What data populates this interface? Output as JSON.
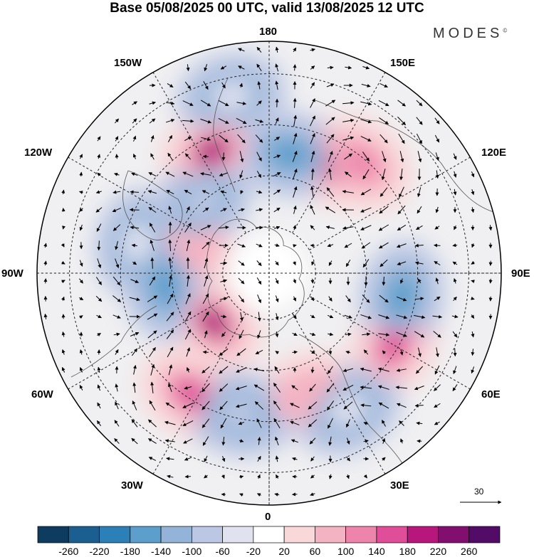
{
  "header": {
    "title": "Base 05/08/2025 00 UTC, valid 13/08/2025 12 UTC",
    "brand": "MODES",
    "brand_mark": "©"
  },
  "map": {
    "projection": "north polar stereographic",
    "longitude_labels": {
      "top": "180",
      "bottom": "0",
      "left": "90W",
      "right": "90E",
      "upper_left": "150W",
      "upper_right": "150E",
      "mid_upper_left": "120W",
      "mid_upper_right": "120E",
      "mid_lower_left": "60W",
      "mid_lower_right": "60E",
      "lower_left": "30W",
      "lower_right": "30E"
    },
    "wind_reference": {
      "label": "30"
    }
  },
  "colorbar": {
    "labels": [
      "-260",
      "-220",
      "-180",
      "-140",
      "-100",
      "-60",
      "-20",
      "20",
      "60",
      "100",
      "140",
      "180",
      "220",
      "260"
    ],
    "colors": [
      "#0d3c5e",
      "#1b5f90",
      "#2d7fb8",
      "#5c9fcc",
      "#93b4d8",
      "#bcc7e3",
      "#e1e2f0",
      "#ffffff",
      "#f9d8d9",
      "#f4b3c3",
      "#ee84ab",
      "#e04d98",
      "#b7177d",
      "#820f70",
      "#520b66"
    ]
  },
  "anomaly_centers": {
    "positive": [
      {
        "lon": 150,
        "lat_ring": 0.55,
        "level": "180"
      },
      {
        "lon": 140,
        "lat_ring": 0.62,
        "level": "100"
      },
      {
        "lon": 60,
        "lat_ring": 0.62,
        "level": "140"
      },
      {
        "lon": -48,
        "lat_ring": 0.32,
        "level": "180"
      },
      {
        "lon": -33,
        "lat_ring": 0.62,
        "level": "140"
      },
      {
        "lon": 18,
        "lat_ring": 0.55,
        "level": "60"
      },
      {
        "lon": -155,
        "lat_ring": 0.58,
        "level": "180"
      },
      {
        "lon": -110,
        "lat_ring": 0.35,
        "level": "60"
      }
    ],
    "negative": [
      {
        "lon": 170,
        "lat_ring": 0.52,
        "level": "-180"
      },
      {
        "lon": 80,
        "lat_ring": 0.58,
        "level": "-180"
      },
      {
        "lon": -83,
        "lat_ring": 0.45,
        "level": "-180"
      },
      {
        "lon": -12,
        "lat_ring": 0.62,
        "level": "-100"
      },
      {
        "lon": 30,
        "lat_ring": 0.68,
        "level": "-60"
      },
      {
        "lon": -137,
        "lat_ring": 0.42,
        "level": "-100"
      },
      {
        "lon": -168,
        "lat_ring": 0.78,
        "level": "-60"
      },
      {
        "lon": -103,
        "lat_ring": 0.58,
        "level": "-60"
      }
    ]
  }
}
